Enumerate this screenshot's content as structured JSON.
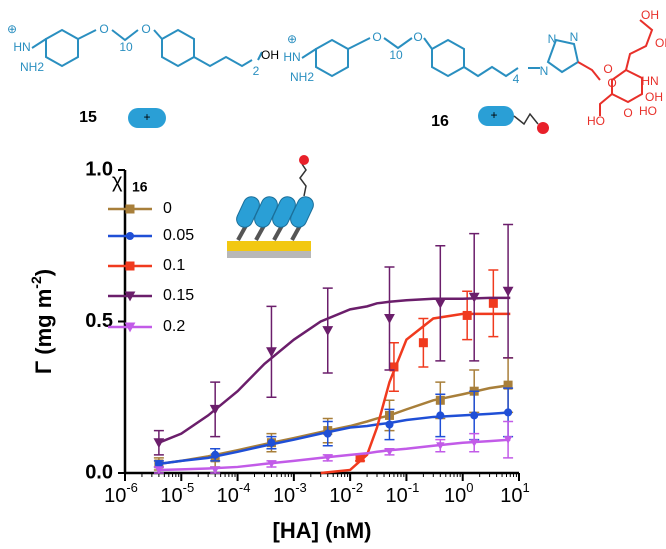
{
  "structures": [
    {
      "label": "15",
      "texts": [
        "⊕",
        "HN",
        "NH2",
        "O",
        "10",
        "O",
        "2",
        "OH",
        "+"
      ]
    },
    {
      "label": "16",
      "texts": [
        "⊕",
        "HN",
        "NH2",
        "O",
        "10",
        "O",
        "4",
        "N",
        "N",
        "N",
        "O",
        "OH",
        "OH",
        "HO",
        "O",
        "HO",
        "O",
        "HN",
        "OH",
        "+"
      ]
    }
  ],
  "chart_data": {
    "type": "line",
    "xlabel": "[HA] (nM)",
    "ylabel": {
      "text": "Γ (mg m",
      "superscript": "-2",
      "close": ")"
    },
    "legend_title": {
      "text": "χ",
      "subscript": "16"
    },
    "xscale": "log",
    "xlim": [
      1e-06,
      10
    ],
    "ylim": [
      0,
      1
    ],
    "xticks": [
      {
        "value": 1e-06,
        "label": "10",
        "superscript": "-6"
      },
      {
        "value": 1e-05,
        "label": "10",
        "superscript": "-5"
      },
      {
        "value": 0.0001,
        "label": "10",
        "superscript": "-4"
      },
      {
        "value": 0.001,
        "label": "10",
        "superscript": "-3"
      },
      {
        "value": 0.01,
        "label": "10",
        "superscript": "-2"
      },
      {
        "value": 0.1,
        "label": "10",
        "superscript": "-1"
      },
      {
        "value": 1,
        "label": "10",
        "superscript": "0"
      },
      {
        "value": 10,
        "label": "10",
        "superscript": "1"
      }
    ],
    "yticks": [
      {
        "value": 0,
        "label": "0.0"
      },
      {
        "value": 0.5,
        "label": "0.5"
      },
      {
        "value": 1,
        "label": "1.0"
      }
    ],
    "fit_x": [
      4e-06,
      1e-05,
      3e-05,
      0.0001,
      0.0003,
      0.001,
      0.003,
      0.01,
      0.02,
      0.03,
      0.05,
      0.1,
      0.3,
      1,
      3,
      7
    ],
    "series": [
      {
        "name": "0",
        "color": "#a87f3a",
        "marker": "square",
        "x": [
          4e-06,
          4e-05,
          0.0004,
          0.004,
          0.05,
          0.4,
          1.6,
          6.4
        ],
        "values": [
          0.03,
          0.05,
          0.1,
          0.14,
          0.19,
          0.24,
          0.27,
          0.29
        ],
        "errors": [
          0.02,
          0.03,
          0.03,
          0.04,
          0.05,
          0.06,
          0.07,
          0.09
        ],
        "fit": [
          0.03,
          0.04,
          0.055,
          0.075,
          0.095,
          0.115,
          0.135,
          0.155,
          0.17,
          0.18,
          0.19,
          0.21,
          0.24,
          0.26,
          0.28,
          0.29
        ]
      },
      {
        "name": "0.05",
        "color": "#1f4fd6",
        "marker": "circle",
        "x": [
          4e-06,
          4e-05,
          0.0004,
          0.004,
          0.05,
          0.4,
          1.6,
          6.4
        ],
        "values": [
          0.03,
          0.06,
          0.1,
          0.13,
          0.16,
          0.19,
          0.19,
          0.2
        ],
        "errors": [
          0.01,
          0.02,
          0.02,
          0.04,
          0.05,
          0.07,
          0.08,
          0.08
        ],
        "fit": [
          0.03,
          0.04,
          0.05,
          0.07,
          0.09,
          0.11,
          0.13,
          0.15,
          0.155,
          0.16,
          0.165,
          0.175,
          0.185,
          0.19,
          0.195,
          0.2
        ]
      },
      {
        "name": "0.1",
        "color": "#f03a1e",
        "marker": "square",
        "x": [
          0.015,
          0.06,
          0.2,
          1.2,
          3.5
        ],
        "values": [
          0.05,
          0.35,
          0.43,
          0.52,
          0.56
        ],
        "errors": [
          0.01,
          0.08,
          0.08,
          0.08,
          0.11
        ],
        "fit": [
          null,
          null,
          null,
          null,
          null,
          null,
          0,
          0.01,
          0.06,
          0.15,
          0.3,
          0.44,
          0.51,
          0.525,
          0.525,
          0.525
        ]
      },
      {
        "name": "0.15",
        "color": "#6b1e6b",
        "marker": "triangle",
        "x": [
          4e-06,
          4e-05,
          0.0004,
          0.004,
          0.05,
          0.4,
          1.6,
          6.4
        ],
        "values": [
          0.1,
          0.21,
          0.4,
          0.47,
          0.51,
          0.56,
          0.58,
          0.6
        ],
        "errors": [
          0.04,
          0.09,
          0.15,
          0.14,
          0.17,
          0.19,
          0.21,
          0.22
        ],
        "fit": [
          0.1,
          0.13,
          0.19,
          0.27,
          0.36,
          0.44,
          0.5,
          0.54,
          0.55,
          0.56,
          0.565,
          0.57,
          0.575,
          0.575,
          0.578,
          0.578
        ]
      },
      {
        "name": "0.2",
        "color": "#c25be8",
        "marker": "triangle",
        "x": [
          4e-06,
          4e-05,
          0.0004,
          0.004,
          0.05,
          0.4,
          1.6,
          6.4
        ],
        "values": [
          0.01,
          0.01,
          0.03,
          0.05,
          0.07,
          0.09,
          0.1,
          0.11
        ],
        "errors": [
          0.01,
          0.01,
          0.01,
          0.01,
          0.01,
          0.02,
          0.03,
          0.06
        ],
        "fit": [
          0.01,
          0.012,
          0.015,
          0.02,
          0.03,
          0.04,
          0.05,
          0.06,
          0.065,
          0.07,
          0.075,
          0.08,
          0.09,
          0.1,
          0.105,
          0.11
        ]
      }
    ]
  }
}
